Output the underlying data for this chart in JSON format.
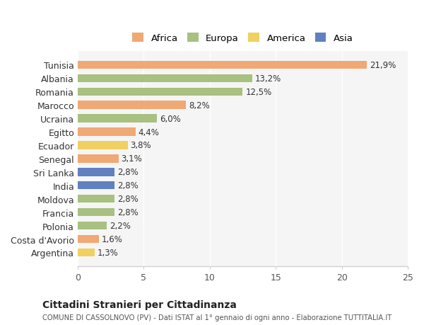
{
  "categories": [
    "Tunisia",
    "Albania",
    "Romania",
    "Marocco",
    "Ucraina",
    "Egitto",
    "Ecuador",
    "Senegal",
    "Sri Lanka",
    "India",
    "Moldova",
    "Francia",
    "Polonia",
    "Costa d'Avorio",
    "Argentina"
  ],
  "values": [
    21.9,
    13.2,
    12.5,
    8.2,
    6.0,
    4.4,
    3.8,
    3.1,
    2.8,
    2.8,
    2.8,
    2.8,
    2.2,
    1.6,
    1.3
  ],
  "continents": [
    "Africa",
    "Europa",
    "Europa",
    "Africa",
    "Europa",
    "Africa",
    "America",
    "Africa",
    "Asia",
    "Asia",
    "Europa",
    "Europa",
    "Europa",
    "Africa",
    "America"
  ],
  "colors": {
    "Africa": "#F0A875",
    "Europa": "#A8C080",
    "America": "#F0D060",
    "Asia": "#6080C0"
  },
  "legend_order": [
    "Africa",
    "Europa",
    "America",
    "Asia"
  ],
  "title": "Cittadini Stranieri per Cittadinanza",
  "subtitle": "COMUNE DI CASSOLNOVO (PV) - Dati ISTAT al 1° gennaio di ogni anno - Elaborazione TUTTITALIA.IT",
  "xlim": [
    0,
    25
  ],
  "xticks": [
    0,
    5,
    10,
    15,
    20,
    25
  ],
  "background_color": "#ffffff",
  "bar_background": "#f5f5f5"
}
